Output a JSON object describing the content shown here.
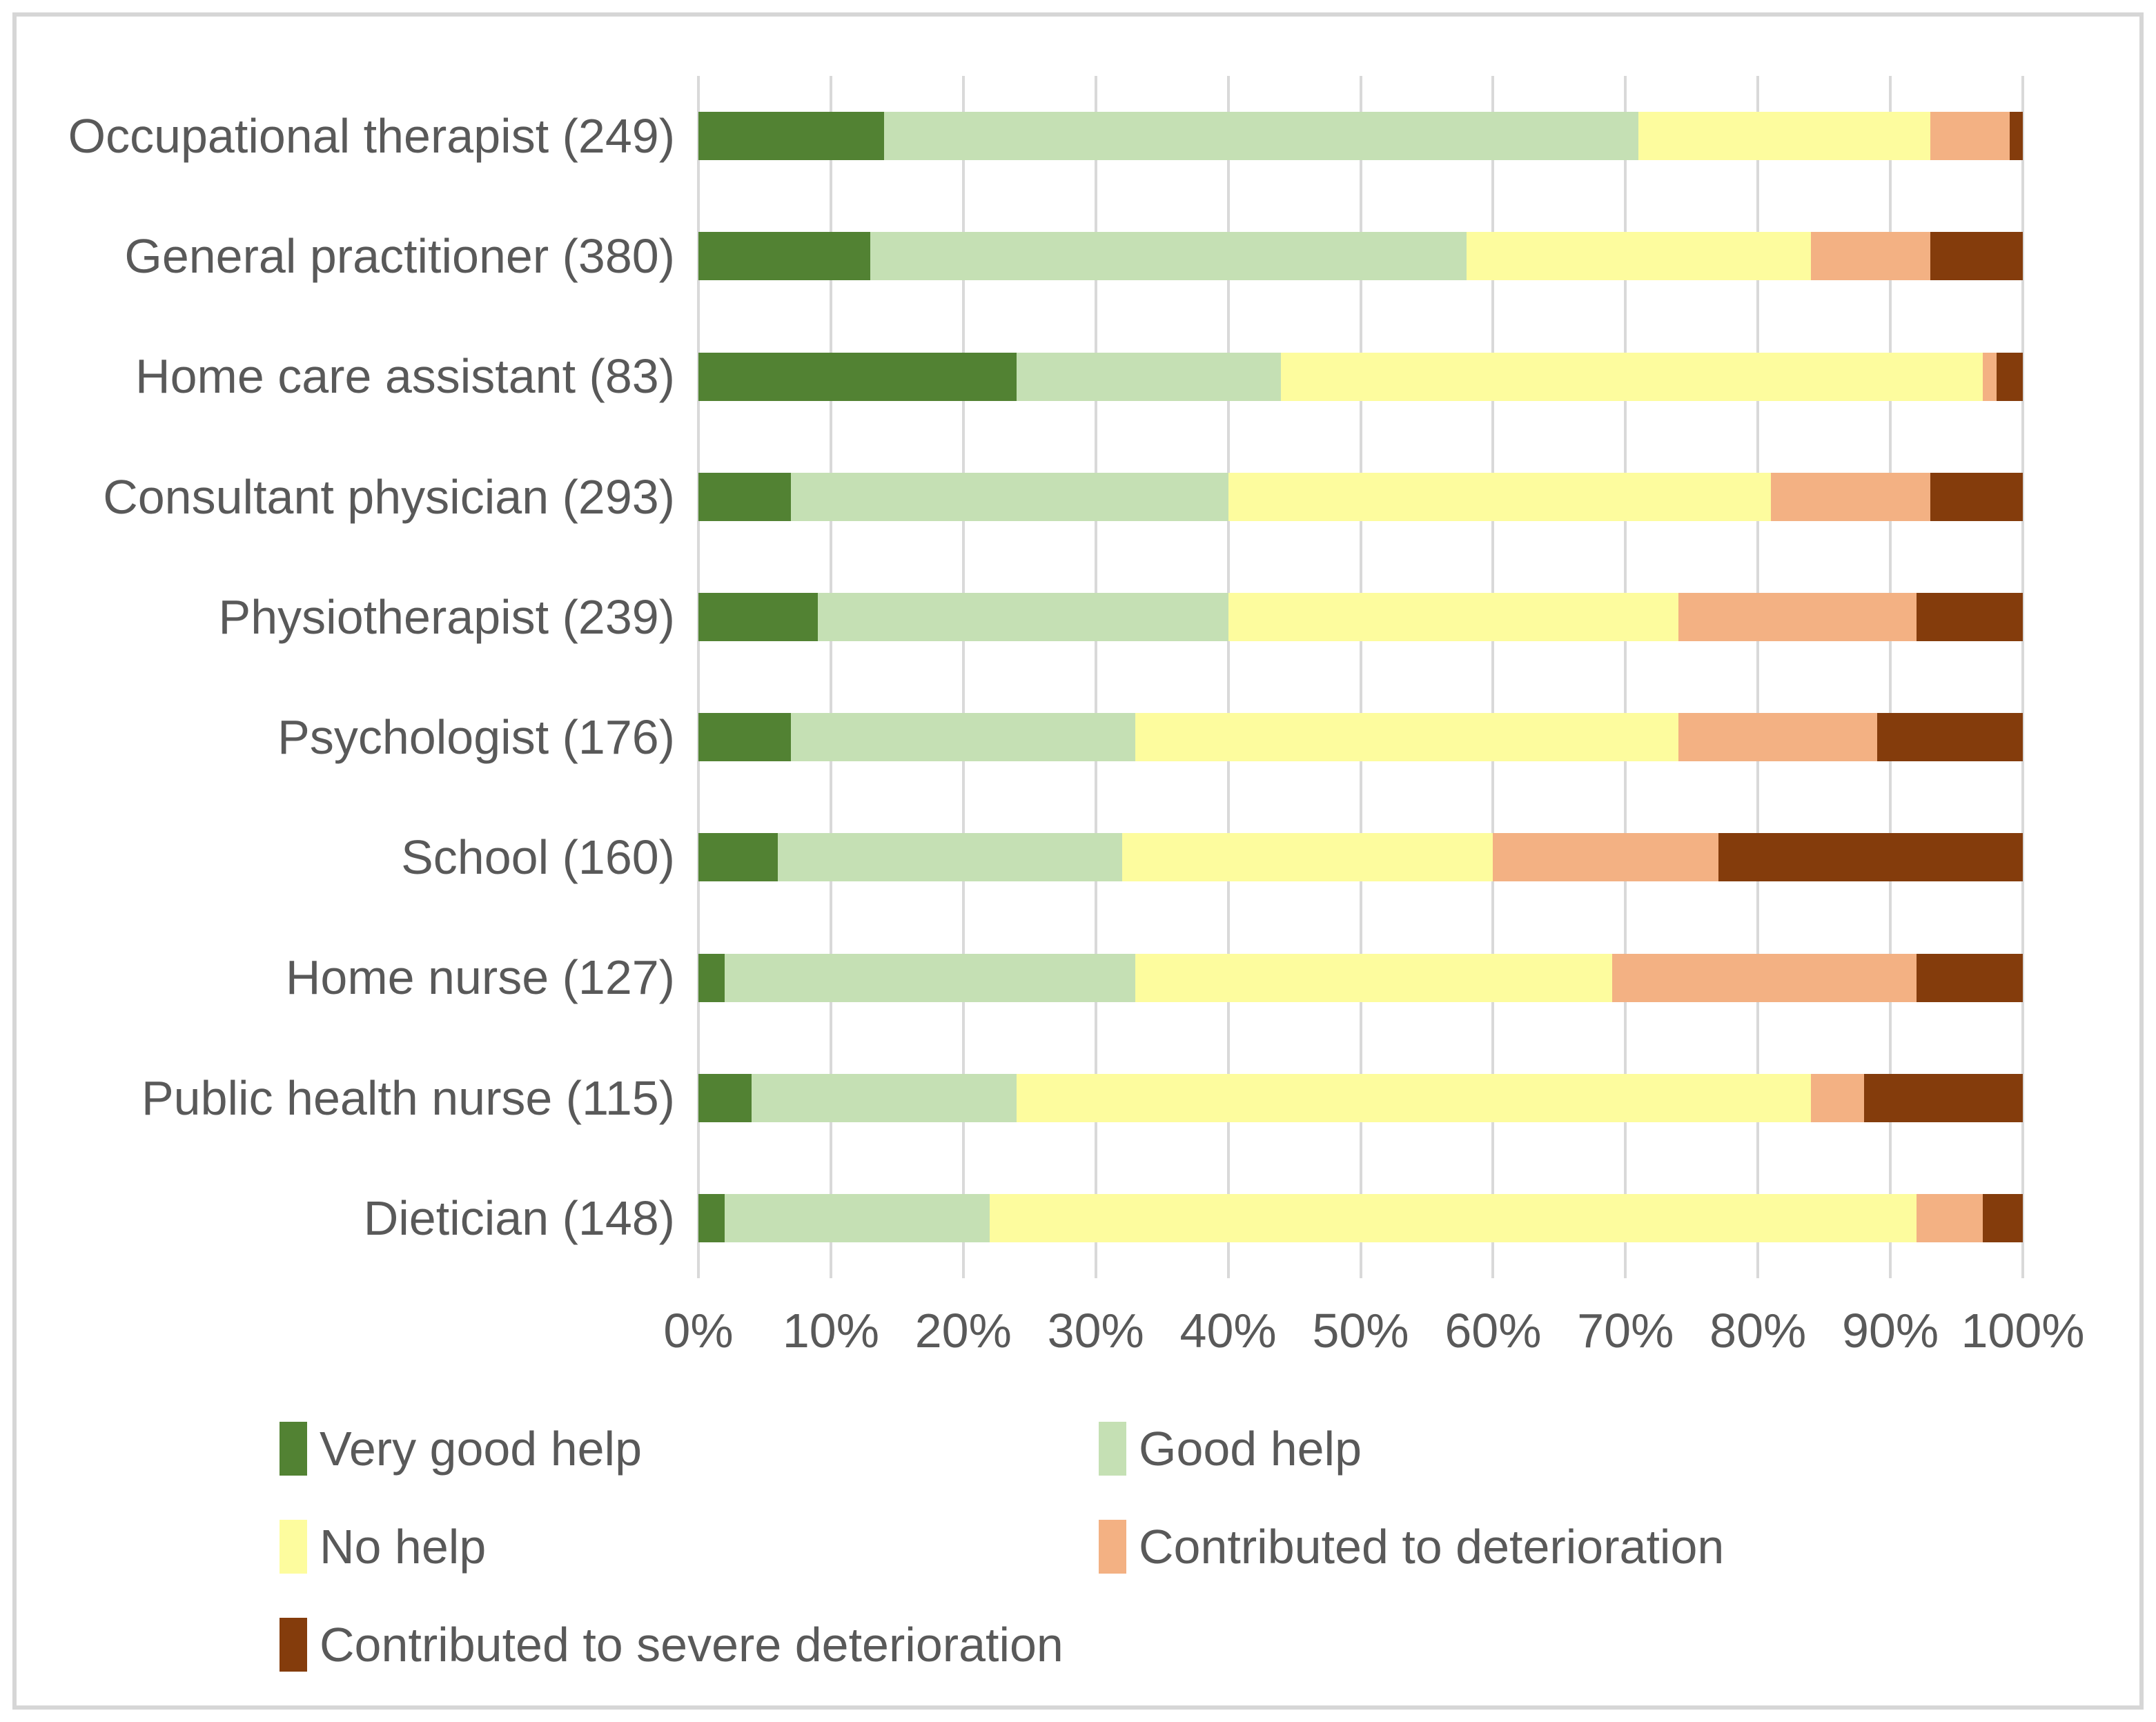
{
  "figure": {
    "background": "#ffffff",
    "frame_border_color": "#d6d6d6",
    "text_color": "#595959",
    "gridline_color": "#d9d9d9"
  },
  "chart_data": {
    "type": "bar",
    "orientation": "horizontal",
    "stacked": true,
    "units": "percent",
    "title": "",
    "categories": [
      "Occupational therapist (249)",
      "General practitioner (380)",
      "Home care assistant (83)",
      "Consultant physician (293)",
      "Physiotherapist (239)",
      "Psychologist (176)",
      "School (160)",
      "Home nurse (127)",
      "Public health nurse (115)",
      "Dietician (148)"
    ],
    "series": [
      {
        "name": "Very good help",
        "color": "#528233",
        "values": [
          14,
          13,
          24,
          7,
          9,
          7,
          6,
          2,
          4,
          2
        ]
      },
      {
        "name": "Good help",
        "color": "#c5e0b4",
        "values": [
          57,
          45,
          20,
          33,
          31,
          26,
          26,
          31,
          20,
          20
        ]
      },
      {
        "name": "No help",
        "color": "#fdfc9e",
        "values": [
          22,
          26,
          53,
          41,
          34,
          41,
          28,
          36,
          60,
          70
        ]
      },
      {
        "name": "Contributed to deterioration",
        "color": "#f3b183",
        "values": [
          6,
          9,
          1,
          12,
          18,
          15,
          17,
          23,
          4,
          5
        ]
      },
      {
        "name": "Contributed to severe deterioration",
        "color": "#843c0c",
        "values": [
          1,
          7,
          2,
          7,
          8,
          11,
          23,
          8,
          12,
          3
        ]
      }
    ],
    "x_axis": {
      "min": 0,
      "max": 100,
      "tick_step": 10,
      "tick_labels": [
        "0%",
        "10%",
        "20%",
        "30%",
        "40%",
        "50%",
        "60%",
        "70%",
        "80%",
        "90%",
        "100%"
      ]
    },
    "grid": {
      "show": true,
      "vertical": true
    },
    "legend": {
      "position": "bottom",
      "columns": 2,
      "entries": [
        "Very good help",
        "Good help",
        "No help",
        "Contributed to deterioration",
        "Contributed to severe deterioration"
      ]
    }
  }
}
